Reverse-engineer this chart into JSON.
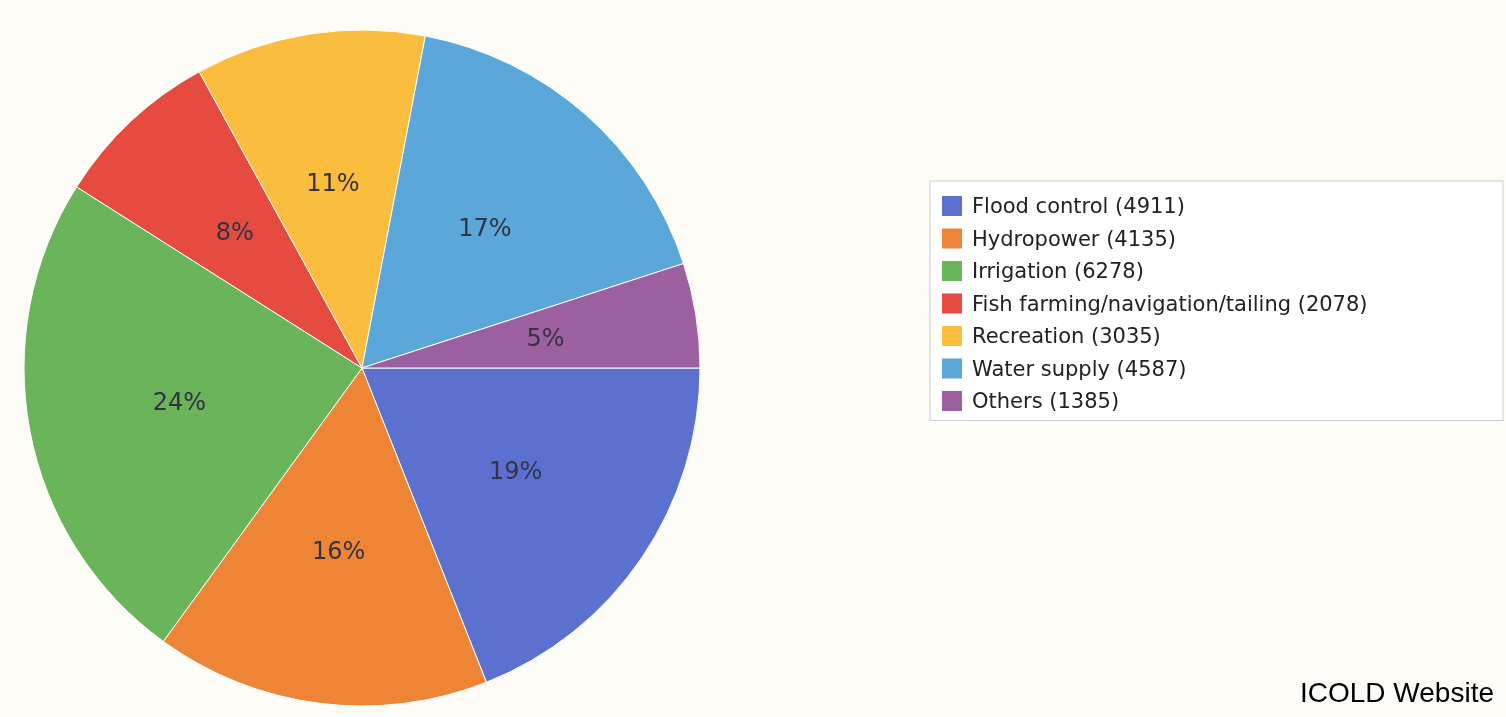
{
  "chart_data": {
    "type": "pie",
    "categories": [
      "Flood control (4911)",
      "Hydropower (4135)",
      "Irrigation (6278)",
      "Fish farming/navigation/tailing (2078)",
      "Recreation (3035)",
      "Water supply (4587)",
      "Others (1385)"
    ],
    "values": [
      19,
      16,
      24,
      8,
      11,
      17,
      5
    ],
    "value_labels": [
      "19%",
      "16%",
      "24%",
      "8%",
      "11%",
      "17%",
      "5%"
    ],
    "colors": [
      "#5c70d0",
      "#ee8536",
      "#6ab45a",
      "#e64b40",
      "#fbbd3d",
      "#5ba7d9",
      "#9c5fa0"
    ],
    "legend": "right",
    "annotations": [
      "ICOLD Website"
    ]
  }
}
